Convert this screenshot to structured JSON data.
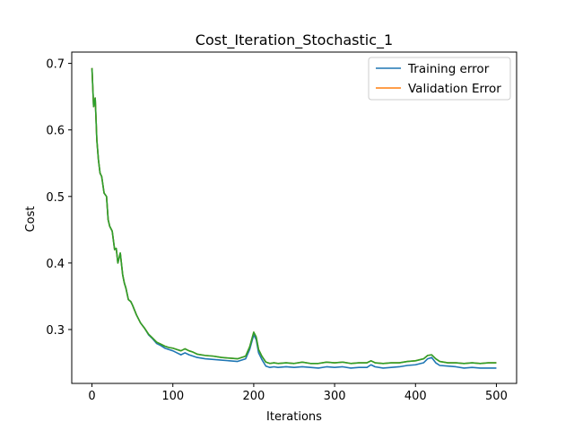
{
  "chart_data": {
    "type": "line",
    "title": "Cost_Iteration_Stochastic_1",
    "xlabel": "Iterations",
    "ylabel": "Cost",
    "xlim": [
      -25,
      525
    ],
    "ylim": [
      0.219,
      0.717
    ],
    "xticks": [
      0,
      100,
      200,
      300,
      400,
      500
    ],
    "yticks": [
      0.3,
      0.4,
      0.5,
      0.6,
      0.7
    ],
    "grid": false,
    "legend_placement": "top-right",
    "series": [
      {
        "name": "Training error",
        "color": "#1f77b4",
        "x": [
          0,
          2,
          4,
          6,
          8,
          10,
          12,
          15,
          18,
          20,
          22,
          25,
          28,
          30,
          32,
          35,
          38,
          40,
          42,
          45,
          48,
          50,
          55,
          60,
          65,
          70,
          75,
          80,
          85,
          90,
          95,
          100,
          105,
          110,
          115,
          120,
          125,
          130,
          140,
          150,
          160,
          170,
          180,
          190,
          195,
          200,
          203,
          206,
          210,
          215,
          220,
          225,
          230,
          240,
          250,
          260,
          270,
          280,
          290,
          300,
          310,
          320,
          330,
          340,
          345,
          350,
          360,
          370,
          380,
          390,
          400,
          410,
          415,
          420,
          425,
          430,
          440,
          450,
          460,
          470,
          480,
          490,
          500
        ],
        "y": [
          0.693,
          0.635,
          0.648,
          0.585,
          0.555,
          0.535,
          0.53,
          0.505,
          0.5,
          0.465,
          0.455,
          0.448,
          0.42,
          0.422,
          0.4,
          0.415,
          0.382,
          0.37,
          0.362,
          0.345,
          0.342,
          0.337,
          0.322,
          0.31,
          0.302,
          0.292,
          0.286,
          0.279,
          0.276,
          0.272,
          0.27,
          0.268,
          0.265,
          0.262,
          0.265,
          0.262,
          0.26,
          0.258,
          0.256,
          0.255,
          0.254,
          0.253,
          0.252,
          0.256,
          0.27,
          0.292,
          0.285,
          0.265,
          0.255,
          0.245,
          0.243,
          0.244,
          0.243,
          0.244,
          0.243,
          0.244,
          0.243,
          0.242,
          0.244,
          0.243,
          0.244,
          0.242,
          0.243,
          0.243,
          0.247,
          0.244,
          0.242,
          0.243,
          0.244,
          0.246,
          0.247,
          0.25,
          0.256,
          0.258,
          0.25,
          0.246,
          0.245,
          0.244,
          0.242,
          0.243,
          0.242,
          0.242,
          0.242
        ]
      },
      {
        "name": "Validation Error",
        "color": "#ff7f0e",
        "x": [
          0,
          2,
          4,
          6,
          8,
          10,
          12,
          15,
          18,
          20,
          22,
          25,
          28,
          30,
          32,
          35,
          38,
          40,
          42,
          45,
          48,
          50,
          55,
          60,
          65,
          70,
          75,
          80,
          85,
          90,
          95,
          100,
          105,
          110,
          115,
          120,
          125,
          130,
          140,
          150,
          160,
          170,
          180,
          190,
          195,
          200,
          203,
          206,
          210,
          215,
          220,
          225,
          230,
          240,
          250,
          260,
          270,
          280,
          290,
          300,
          310,
          320,
          330,
          340,
          345,
          350,
          360,
          370,
          380,
          390,
          400,
          410,
          415,
          420,
          425,
          430,
          440,
          450,
          460,
          470,
          480,
          490,
          500
        ],
        "y": [
          0.693,
          0.635,
          0.648,
          0.585,
          0.555,
          0.535,
          0.53,
          0.505,
          0.5,
          0.465,
          0.455,
          0.448,
          0.42,
          0.422,
          0.4,
          0.415,
          0.382,
          0.37,
          0.362,
          0.345,
          0.342,
          0.337,
          0.322,
          0.31,
          0.302,
          0.293,
          0.287,
          0.281,
          0.278,
          0.275,
          0.273,
          0.272,
          0.27,
          0.268,
          0.271,
          0.268,
          0.266,
          0.263,
          0.261,
          0.26,
          0.258,
          0.257,
          0.256,
          0.26,
          0.274,
          0.296,
          0.289,
          0.27,
          0.26,
          0.251,
          0.249,
          0.25,
          0.249,
          0.25,
          0.249,
          0.251,
          0.249,
          0.249,
          0.251,
          0.25,
          0.251,
          0.249,
          0.25,
          0.25,
          0.253,
          0.25,
          0.249,
          0.25,
          0.25,
          0.252,
          0.253,
          0.256,
          0.261,
          0.262,
          0.256,
          0.252,
          0.25,
          0.25,
          0.249,
          0.25,
          0.249,
          0.25,
          0.25
        ]
      },
      {
        "color": "#2ca02c",
        "x": [
          0,
          2,
          4,
          6,
          8,
          10,
          12,
          15,
          18,
          20,
          22,
          25,
          28,
          30,
          32,
          35,
          38,
          40,
          42,
          45,
          48,
          50,
          55,
          60,
          65,
          70,
          75,
          80,
          85,
          90,
          95,
          100,
          105,
          110,
          115,
          120,
          125,
          130,
          140,
          150,
          160,
          170,
          180,
          190,
          195,
          200,
          203,
          206,
          210,
          215,
          220,
          225,
          230,
          240,
          250,
          260,
          270,
          280,
          290,
          300,
          310,
          320,
          330,
          340,
          345,
          350,
          360,
          370,
          380,
          390,
          400,
          410,
          415,
          420,
          425,
          430,
          440,
          450,
          460,
          470,
          480,
          490,
          500
        ],
        "y": [
          0.693,
          0.635,
          0.648,
          0.585,
          0.555,
          0.535,
          0.53,
          0.505,
          0.5,
          0.465,
          0.455,
          0.448,
          0.42,
          0.422,
          0.4,
          0.415,
          0.382,
          0.37,
          0.362,
          0.345,
          0.342,
          0.337,
          0.322,
          0.31,
          0.302,
          0.293,
          0.287,
          0.281,
          0.278,
          0.275,
          0.273,
          0.272,
          0.27,
          0.268,
          0.271,
          0.268,
          0.266,
          0.263,
          0.261,
          0.26,
          0.258,
          0.257,
          0.256,
          0.26,
          0.274,
          0.296,
          0.289,
          0.27,
          0.26,
          0.251,
          0.249,
          0.25,
          0.249,
          0.25,
          0.249,
          0.251,
          0.249,
          0.249,
          0.251,
          0.25,
          0.251,
          0.249,
          0.25,
          0.25,
          0.253,
          0.25,
          0.249,
          0.25,
          0.25,
          0.252,
          0.253,
          0.256,
          0.261,
          0.262,
          0.256,
          0.252,
          0.25,
          0.25,
          0.249,
          0.25,
          0.249,
          0.25,
          0.25
        ]
      }
    ]
  }
}
